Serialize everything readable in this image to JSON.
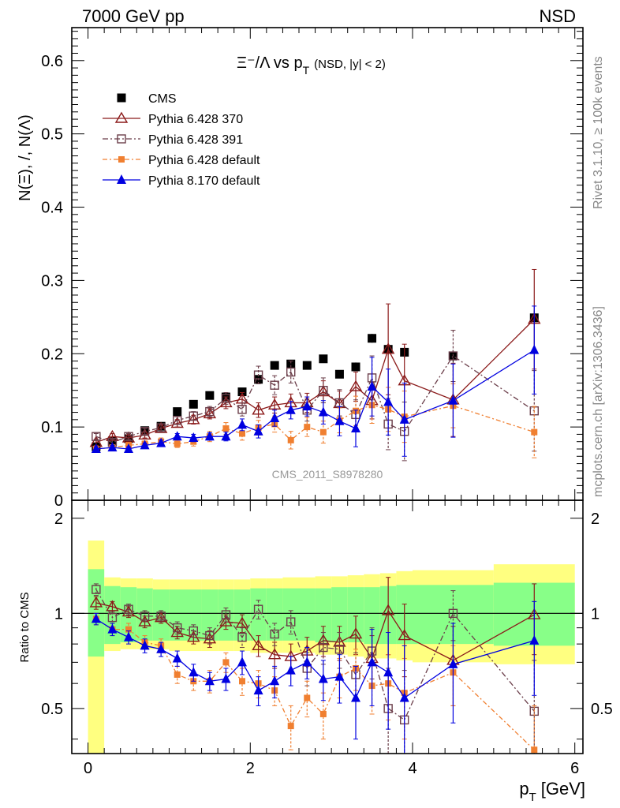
{
  "header": {
    "left": "7000 GeV pp",
    "right": "NSD"
  },
  "side_labels": {
    "rivet": "Rivet 3.1.10, ≥ 100k events",
    "mcplots": "mcplots.cern.ch [arXiv:1306.3436]"
  },
  "plot_title": {
    "main": "Ξ⁻/Λ  vs p",
    "sub": "T",
    "extra": "(NSD, |y| < 2)"
  },
  "analysis_label": "CMS_2011_S8978280",
  "colors": {
    "cms": "#000000",
    "p370": "#8b1a1a",
    "p391": "#6b3e4a",
    "p6def": "#f07f30",
    "p8def": "#0000e0",
    "band_outer": "#ffff80",
    "band_inner": "#88ff88"
  },
  "chart_data": [
    {
      "type": "scatter",
      "panel": "main",
      "ylabel": "N(Ξ), /, N(Λ)",
      "xlim": [
        -0.2,
        6.1
      ],
      "ylim": [
        0,
        0.645
      ],
      "yticks": [
        0,
        0.1,
        0.2,
        0.3,
        0.4,
        0.5,
        0.6
      ],
      "ytick_labels": [
        "0",
        "0.1",
        "0.2",
        "0.3",
        "0.4",
        "0.5",
        "0.6"
      ],
      "legend_position": "top-left",
      "x": [
        0.1,
        0.3,
        0.5,
        0.7,
        0.9,
        1.1,
        1.3,
        1.5,
        1.7,
        1.9,
        2.1,
        2.3,
        2.5,
        2.7,
        2.9,
        3.1,
        3.3,
        3.5,
        3.7,
        3.9,
        4.5,
        5.5
      ],
      "series": [
        {
          "name": "CMS",
          "key": "cms",
          "marker": "filled-square",
          "values": [
            0.073,
            0.081,
            0.084,
            0.095,
            0.101,
            0.121,
            0.131,
            0.143,
            0.141,
            0.148,
            0.165,
            0.184,
            0.186,
            0.184,
            0.193,
            0.172,
            0.182,
            0.221,
            0.206,
            0.202,
            0.197,
            0.249
          ],
          "errors": [
            0.002,
            0.002,
            0.002,
            0.002,
            0.002,
            0.002,
            0.002,
            0.003,
            0.003,
            0.003,
            0.003,
            0.004,
            0.004,
            0.004,
            0.005,
            0.005,
            0.006,
            0.006,
            0.007,
            0.008,
            0.008,
            0.01
          ]
        },
        {
          "name": "Pythia 6.428 370",
          "key": "p370",
          "marker": "open-triangle",
          "values": [
            0.079,
            0.087,
            0.085,
            0.089,
            0.098,
            0.105,
            0.11,
            0.118,
            0.133,
            0.138,
            0.123,
            0.13,
            0.133,
            0.133,
            0.148,
            0.132,
            0.155,
            0.136,
            0.206,
            0.163,
            0.137,
            0.247
          ],
          "errors": [
            0.004,
            0.004,
            0.004,
            0.004,
            0.005,
            0.005,
            0.006,
            0.007,
            0.008,
            0.009,
            0.01,
            0.011,
            0.012,
            0.013,
            0.015,
            0.017,
            0.02,
            0.025,
            0.062,
            0.05,
            0.05,
            0.068
          ]
        },
        {
          "name": "Pythia 6.428 391",
          "key": "p391",
          "marker": "open-square",
          "values": [
            0.087,
            0.079,
            0.087,
            0.094,
            0.099,
            0.109,
            0.115,
            0.121,
            0.139,
            0.124,
            0.171,
            0.157,
            0.175,
            0.123,
            0.15,
            0.133,
            0.117,
            0.167,
            0.104,
            0.094,
            0.197,
            0.122
          ],
          "errors": [
            0.004,
            0.004,
            0.004,
            0.004,
            0.005,
            0.005,
            0.006,
            0.007,
            0.008,
            0.009,
            0.012,
            0.013,
            0.015,
            0.015,
            0.017,
            0.018,
            0.02,
            0.03,
            0.035,
            0.04,
            0.035,
            0.055
          ]
        },
        {
          "name": "Pythia 6.428 default",
          "key": "p6def",
          "marker": "filled-small-square",
          "values": [
            0.07,
            0.072,
            0.075,
            0.077,
            0.08,
            0.077,
            0.08,
            0.087,
            0.098,
            0.091,
            0.099,
            0.104,
            0.082,
            0.1,
            0.093,
            0.109,
            0.122,
            0.13,
            0.124,
            0.114,
            0.129,
            0.093
          ],
          "errors": [
            0.004,
            0.004,
            0.004,
            0.004,
            0.005,
            0.005,
            0.006,
            0.007,
            0.008,
            0.009,
            0.01,
            0.011,
            0.012,
            0.013,
            0.015,
            0.017,
            0.02,
            0.025,
            0.03,
            0.035,
            0.03,
            0.035
          ]
        },
        {
          "name": "Pythia 8.170 default",
          "key": "p8def",
          "marker": "filled-triangle",
          "values": [
            0.07,
            0.072,
            0.07,
            0.075,
            0.078,
            0.087,
            0.085,
            0.087,
            0.087,
            0.103,
            0.094,
            0.112,
            0.123,
            0.128,
            0.12,
            0.108,
            0.098,
            0.155,
            0.134,
            0.11,
            0.136,
            0.205
          ],
          "errors": [
            0.003,
            0.003,
            0.003,
            0.003,
            0.004,
            0.004,
            0.005,
            0.005,
            0.006,
            0.008,
            0.009,
            0.011,
            0.012,
            0.013,
            0.016,
            0.02,
            0.025,
            0.04,
            0.045,
            0.05,
            0.05,
            0.06
          ]
        }
      ]
    },
    {
      "type": "scatter",
      "panel": "ratio",
      "ylabel": "Ratio to CMS",
      "xlabel_main": "p",
      "xlabel_sub": "T",
      "xlabel_unit": "[GeV]",
      "xlim": [
        -0.2,
        6.1
      ],
      "ylim": [
        0.36,
        2.28
      ],
      "yticks": [
        0.5,
        1,
        2
      ],
      "ytick_labels": [
        "0.5",
        "1",
        "2"
      ],
      "xticks": [
        0,
        2,
        4,
        6
      ],
      "xtick_labels": [
        "0",
        "2",
        "4",
        "6"
      ],
      "reference_line": 1,
      "band_bins": [
        [
          0.0,
          0.2,
          0.0,
          1.7,
          0.73,
          1.38
        ],
        [
          0.2,
          0.4,
          0.76,
          1.3,
          0.8,
          1.22
        ],
        [
          0.4,
          0.6,
          0.77,
          1.29,
          0.81,
          1.21
        ],
        [
          0.6,
          0.8,
          0.77,
          1.29,
          0.82,
          1.2
        ],
        [
          0.8,
          1.0,
          0.77,
          1.28,
          0.82,
          1.19
        ],
        [
          1.0,
          1.2,
          0.76,
          1.28,
          0.82,
          1.19
        ],
        [
          1.2,
          1.4,
          0.76,
          1.28,
          0.82,
          1.19
        ],
        [
          1.4,
          1.6,
          0.76,
          1.28,
          0.82,
          1.19
        ],
        [
          1.6,
          1.8,
          0.76,
          1.28,
          0.82,
          1.19
        ],
        [
          1.8,
          2.0,
          0.76,
          1.28,
          0.82,
          1.19
        ],
        [
          2.0,
          2.2,
          0.75,
          1.29,
          0.82,
          1.2
        ],
        [
          2.2,
          2.4,
          0.75,
          1.29,
          0.82,
          1.2
        ],
        [
          2.4,
          2.6,
          0.75,
          1.3,
          0.82,
          1.2
        ],
        [
          2.6,
          2.8,
          0.75,
          1.3,
          0.82,
          1.2
        ],
        [
          2.8,
          3.0,
          0.74,
          1.31,
          0.81,
          1.2
        ],
        [
          3.0,
          3.2,
          0.74,
          1.31,
          0.81,
          1.21
        ],
        [
          3.2,
          3.4,
          0.73,
          1.32,
          0.81,
          1.21
        ],
        [
          3.4,
          3.6,
          0.72,
          1.33,
          0.8,
          1.21
        ],
        [
          3.6,
          3.8,
          0.72,
          1.34,
          0.8,
          1.22
        ],
        [
          3.8,
          4.0,
          0.71,
          1.36,
          0.8,
          1.23
        ],
        [
          4.0,
          5.0,
          0.7,
          1.37,
          0.8,
          1.23
        ],
        [
          5.0,
          6.0,
          0.69,
          1.43,
          0.79,
          1.25
        ]
      ],
      "x": [
        0.1,
        0.3,
        0.5,
        0.7,
        0.9,
        1.1,
        1.3,
        1.5,
        1.7,
        1.9,
        2.1,
        2.3,
        2.5,
        2.7,
        2.9,
        3.1,
        3.3,
        3.5,
        3.7,
        3.9,
        4.5,
        5.5
      ],
      "series": [
        {
          "name": "Pythia 6.428 370",
          "key": "p370",
          "marker": "open-triangle",
          "values": [
            1.08,
            1.05,
            1.01,
            0.94,
            0.97,
            0.87,
            0.84,
            0.83,
            0.94,
            0.93,
            0.79,
            0.74,
            0.73,
            0.76,
            0.82,
            0.81,
            0.86,
            0.72,
            1.02,
            0.85,
            0.71,
            0.99
          ],
          "errors": [
            0.05,
            0.04,
            0.04,
            0.04,
            0.04,
            0.04,
            0.04,
            0.05,
            0.05,
            0.06,
            0.06,
            0.07,
            0.07,
            0.08,
            0.09,
            0.1,
            0.12,
            0.13,
            0.28,
            0.22,
            0.2,
            0.25
          ]
        },
        {
          "name": "Pythia 6.428 391",
          "key": "p391",
          "marker": "open-square",
          "values": [
            1.19,
            0.97,
            1.03,
            0.98,
            0.98,
            0.9,
            0.88,
            0.85,
            0.99,
            0.84,
            1.03,
            0.86,
            0.94,
            0.67,
            0.78,
            0.77,
            0.64,
            0.76,
            0.5,
            0.46,
            1.0,
            0.49
          ],
          "errors": [
            0.05,
            0.04,
            0.04,
            0.04,
            0.04,
            0.04,
            0.04,
            0.05,
            0.05,
            0.06,
            0.07,
            0.07,
            0.08,
            0.08,
            0.09,
            0.1,
            0.11,
            0.14,
            0.17,
            0.2,
            0.18,
            0.22
          ]
        },
        {
          "name": "Pythia 6.428 default",
          "key": "p6def",
          "marker": "filled-small-square",
          "values": [
            0.96,
            0.89,
            0.89,
            0.81,
            0.79,
            0.64,
            0.61,
            0.61,
            0.7,
            0.61,
            0.6,
            0.57,
            0.44,
            0.54,
            0.48,
            0.63,
            0.67,
            0.59,
            0.6,
            0.56,
            0.65,
            0.37
          ],
          "errors": [
            0.04,
            0.04,
            0.04,
            0.04,
            0.04,
            0.04,
            0.04,
            0.05,
            0.05,
            0.06,
            0.06,
            0.06,
            0.07,
            0.07,
            0.08,
            0.09,
            0.1,
            0.11,
            0.14,
            0.16,
            0.14,
            0.14
          ]
        },
        {
          "name": "Pythia 8.170 default",
          "key": "p8def",
          "marker": "filled-triangle",
          "values": [
            0.96,
            0.89,
            0.84,
            0.79,
            0.77,
            0.72,
            0.65,
            0.61,
            0.62,
            0.7,
            0.57,
            0.61,
            0.66,
            0.7,
            0.62,
            0.63,
            0.54,
            0.7,
            0.65,
            0.54,
            0.69,
            0.82
          ],
          "errors": [
            0.04,
            0.04,
            0.04,
            0.04,
            0.04,
            0.04,
            0.04,
            0.04,
            0.05,
            0.06,
            0.06,
            0.07,
            0.07,
            0.08,
            0.09,
            0.11,
            0.14,
            0.19,
            0.22,
            0.25,
            0.24,
            0.27
          ]
        }
      ]
    }
  ]
}
